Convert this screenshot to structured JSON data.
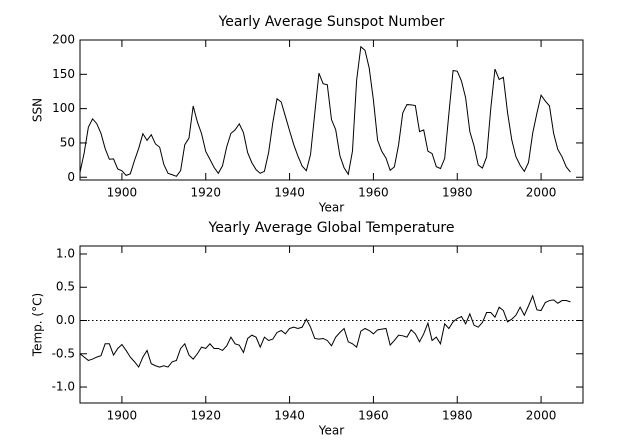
{
  "chart_data": [
    {
      "type": "line",
      "title": "Yearly Average Sunspot Number",
      "xlabel": "Year",
      "ylabel": "SSN",
      "xlim": [
        1890,
        2010
      ],
      "xticks": [
        1900,
        1920,
        1940,
        1960,
        1980,
        2000
      ],
      "ylim": [
        -4,
        200
      ],
      "yticks": [
        0,
        50,
        100,
        150,
        200
      ],
      "series": [
        {
          "color": "#000000",
          "x": [
            1890,
            1891,
            1892,
            1893,
            1894,
            1895,
            1896,
            1897,
            1898,
            1899,
            1900,
            1901,
            1902,
            1903,
            1904,
            1905,
            1906,
            1907,
            1908,
            1909,
            1910,
            1911,
            1912,
            1913,
            1914,
            1915,
            1916,
            1917,
            1918,
            1919,
            1920,
            1921,
            1922,
            1923,
            1924,
            1925,
            1926,
            1927,
            1928,
            1929,
            1930,
            1931,
            1932,
            1933,
            1934,
            1935,
            1936,
            1937,
            1938,
            1939,
            1940,
            1941,
            1942,
            1943,
            1944,
            1945,
            1946,
            1947,
            1948,
            1949,
            1950,
            1951,
            1952,
            1953,
            1954,
            1955,
            1956,
            1957,
            1958,
            1959,
            1960,
            1961,
            1962,
            1963,
            1964,
            1965,
            1966,
            1967,
            1968,
            1969,
            1970,
            1971,
            1972,
            1973,
            1974,
            1975,
            1976,
            1977,
            1978,
            1979,
            1980,
            1981,
            1982,
            1983,
            1984,
            1985,
            1986,
            1987,
            1988,
            1989,
            1990,
            1991,
            1992,
            1993,
            1994,
            1995,
            1996,
            1997,
            1998,
            1999,
            2000,
            2001,
            2002,
            2003,
            2004,
            2005,
            2006,
            2007
          ],
          "values": [
            7.1,
            35.6,
            73.0,
            85.1,
            78.0,
            64.0,
            41.8,
            26.2,
            26.7,
            12.1,
            9.5,
            2.7,
            5.0,
            24.4,
            42.0,
            63.5,
            53.8,
            62.0,
            48.5,
            43.9,
            18.6,
            5.7,
            3.6,
            1.4,
            9.6,
            47.4,
            57.1,
            103.9,
            80.6,
            63.6,
            37.6,
            26.1,
            14.2,
            5.8,
            16.7,
            44.3,
            63.9,
            69.0,
            77.8,
            64.9,
            35.7,
            21.2,
            11.1,
            5.7,
            8.7,
            36.1,
            79.7,
            114.4,
            109.6,
            88.8,
            67.8,
            47.5,
            30.6,
            16.3,
            9.6,
            33.2,
            92.6,
            151.6,
            136.3,
            134.7,
            83.9,
            69.4,
            31.5,
            13.9,
            4.4,
            38.0,
            141.7,
            190.2,
            184.8,
            159.0,
            112.3,
            53.9,
            37.6,
            27.9,
            10.2,
            15.1,
            47.0,
            93.8,
            105.9,
            105.5,
            104.5,
            66.6,
            68.9,
            38.0,
            34.5,
            15.5,
            12.6,
            27.5,
            92.5,
            155.4,
            154.6,
            140.4,
            115.9,
            66.6,
            45.9,
            17.9,
            13.4,
            29.4,
            100.2,
            157.6,
            142.6,
            145.7,
            94.3,
            54.6,
            29.9,
            17.5,
            8.6,
            21.5,
            64.3,
            93.3,
            119.6,
            111.0,
            104.0,
            63.7,
            40.4,
            29.8,
            15.2,
            7.5
          ]
        }
      ]
    },
    {
      "type": "line",
      "title": "Yearly Average Global Temperature",
      "xlabel": "Year",
      "ylabel": "Temp. (°C)",
      "xlim": [
        1890,
        2010
      ],
      "xticks": [
        1900,
        1920,
        1940,
        1960,
        1980,
        2000
      ],
      "ylim": [
        -1.24,
        1.12
      ],
      "yticks": [
        {
          "value": -1,
          "label": "-1.0"
        },
        -0.5,
        {
          "value": 0,
          "label": "0.0"
        },
        0.5,
        {
          "value": 1,
          "label": "1.0"
        }
      ],
      "hline": 0,
      "series": [
        {
          "color": "#000000",
          "x": [
            1890,
            1891,
            1892,
            1893,
            1894,
            1895,
            1896,
            1897,
            1898,
            1899,
            1900,
            1901,
            1902,
            1903,
            1904,
            1905,
            1906,
            1907,
            1908,
            1909,
            1910,
            1911,
            1912,
            1913,
            1914,
            1915,
            1916,
            1917,
            1918,
            1919,
            1920,
            1921,
            1922,
            1923,
            1924,
            1925,
            1926,
            1927,
            1928,
            1929,
            1930,
            1931,
            1932,
            1933,
            1934,
            1935,
            1936,
            1937,
            1938,
            1939,
            1940,
            1941,
            1942,
            1943,
            1944,
            1945,
            1946,
            1947,
            1948,
            1949,
            1950,
            1951,
            1952,
            1953,
            1954,
            1955,
            1956,
            1957,
            1958,
            1959,
            1960,
            1961,
            1962,
            1963,
            1964,
            1965,
            1966,
            1967,
            1968,
            1969,
            1970,
            1971,
            1972,
            1973,
            1974,
            1975,
            1976,
            1977,
            1978,
            1979,
            1980,
            1981,
            1982,
            1983,
            1984,
            1985,
            1986,
            1987,
            1988,
            1989,
            1990,
            1991,
            1992,
            1993,
            1994,
            1995,
            1996,
            1997,
            1998,
            1999,
            2000,
            2001,
            2002,
            2003,
            2004,
            2005,
            2006,
            2007
          ],
          "values": [
            -0.5,
            -0.55,
            -0.6,
            -0.58,
            -0.55,
            -0.53,
            -0.35,
            -0.35,
            -0.52,
            -0.42,
            -0.36,
            -0.45,
            -0.55,
            -0.62,
            -0.7,
            -0.55,
            -0.45,
            -0.65,
            -0.68,
            -0.7,
            -0.68,
            -0.7,
            -0.62,
            -0.6,
            -0.42,
            -0.35,
            -0.52,
            -0.58,
            -0.5,
            -0.4,
            -0.42,
            -0.35,
            -0.42,
            -0.42,
            -0.45,
            -0.38,
            -0.25,
            -0.35,
            -0.37,
            -0.48,
            -0.27,
            -0.22,
            -0.25,
            -0.4,
            -0.25,
            -0.3,
            -0.28,
            -0.18,
            -0.15,
            -0.2,
            -0.12,
            -0.1,
            -0.12,
            -0.1,
            0.02,
            -0.1,
            -0.27,
            -0.28,
            -0.27,
            -0.3,
            -0.38,
            -0.25,
            -0.18,
            -0.12,
            -0.32,
            -0.35,
            -0.4,
            -0.16,
            -0.12,
            -0.15,
            -0.2,
            -0.14,
            -0.13,
            -0.12,
            -0.37,
            -0.3,
            -0.22,
            -0.23,
            -0.25,
            -0.14,
            -0.2,
            -0.32,
            -0.2,
            -0.04,
            -0.3,
            -0.25,
            -0.35,
            -0.05,
            -0.12,
            -0.02,
            0.03,
            0.06,
            -0.05,
            0.1,
            -0.07,
            -0.1,
            -0.03,
            0.12,
            0.12,
            0.05,
            0.2,
            0.15,
            -0.02,
            0.02,
            0.08,
            0.2,
            0.08,
            0.22,
            0.37,
            0.16,
            0.15,
            0.27,
            0.3,
            0.31,
            0.26,
            0.3,
            0.3,
            0.28
          ]
        }
      ]
    }
  ]
}
